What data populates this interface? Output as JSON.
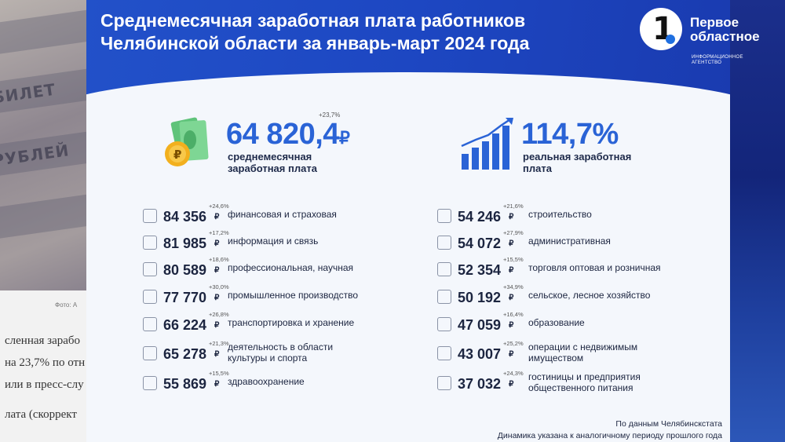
{
  "title_line1": "Среднемесячная заработная плата работников",
  "title_line2": "Челябинской области за январь-март 2024 года",
  "logo": {
    "line1": "Первое",
    "line2": "областное",
    "sub1": "ИНФОРМАЦИОННОЕ",
    "sub2": "АГЕНТСТВО",
    "mark": "1"
  },
  "average": {
    "value": "64 820,4",
    "currency": "₽",
    "change": "+23,7%",
    "label_line1": "среднемесячная",
    "label_line2": "заработная плата"
  },
  "real": {
    "value": "114,7%",
    "label_line1": "реальная заработная",
    "label_line2": "плата"
  },
  "left_rows": [
    {
      "value": "84 356",
      "change": "+24,6%",
      "label1": "финансовая и страховая",
      "label2": "",
      "icon": "finance-icon"
    },
    {
      "value": "81 985",
      "change": "+17,2%",
      "label1": "информация и связь",
      "label2": "",
      "icon": "network-icon"
    },
    {
      "value": "80 589",
      "change": "+18,6%",
      "label1": "профессиональная, научная",
      "label2": "",
      "icon": "atom-icon"
    },
    {
      "value": "77 770",
      "change": "+30,0%",
      "label1": "промышленное производство",
      "label2": "",
      "icon": "factory-icon"
    },
    {
      "value": "66 224",
      "change": "+26,8%",
      "label1": "транспортировка и хранение",
      "label2": "",
      "icon": "truck-icon"
    },
    {
      "value": "65 278",
      "change": "+21,3%",
      "label1": "деятельность в области",
      "label2": "культуры и спорта",
      "icon": "sport-icon"
    },
    {
      "value": "55 869",
      "change": "+15,5%",
      "label1": "здравоохранение",
      "label2": "",
      "icon": "health-icon"
    }
  ],
  "right_rows": [
    {
      "value": "54 246",
      "change": "+21,6%",
      "label1": "строительство",
      "label2": "",
      "icon": "construction-icon"
    },
    {
      "value": "54 072",
      "change": "+27,9%",
      "label1": "административная",
      "label2": "",
      "icon": "building-icon"
    },
    {
      "value": "52 354",
      "change": "+15,5%",
      "label1": "торговля оптовая и розничная",
      "label2": "",
      "icon": "shop-icon"
    },
    {
      "value": "50 192",
      "change": "+34,9%",
      "label1": "сельское, лесное хозяйство",
      "label2": "",
      "icon": "tractor-icon"
    },
    {
      "value": "47 059",
      "change": "+16,4%",
      "label1": "образование",
      "label2": "",
      "icon": "books-icon"
    },
    {
      "value": "43 007",
      "change": "+25,2%",
      "label1": "операции с недвижимым",
      "label2": "имуществом",
      "icon": "house-icon"
    },
    {
      "value": "37 032",
      "change": "+24,3%",
      "label1": "гостиницы и предприятия",
      "label2": "общественного питания",
      "icon": "hotel-icon"
    }
  ],
  "currency": "₽",
  "footer_line1": "По данным Челябинскстата",
  "footer_line2": "Динамика указана к аналогичному периоду прошлого года",
  "background": {
    "note1": "БИЛЕТ",
    "note2": "РУБЛЕЙ",
    "photo_caption": "Фото: А",
    "line1": "сленная зарабо",
    "line2": "на 23,7% по отн",
    "line3": "или в пресс-слу",
    "line4": "лата (скоррект"
  }
}
